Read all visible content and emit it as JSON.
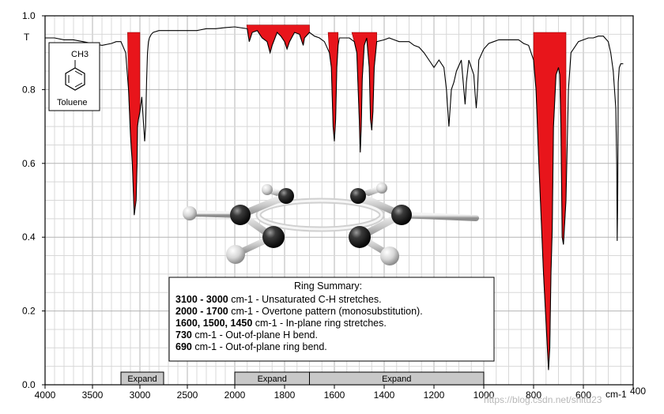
{
  "chart_data": {
    "type": "line",
    "title": "",
    "xlabel": "cm-1",
    "ylabel": "",
    "y_axis_marker": "T",
    "x_direction": "decreasing",
    "xlim": [
      4000,
      400
    ],
    "ylim": [
      0.0,
      1.0
    ],
    "grid": true,
    "x_ticks": [
      4000,
      3500,
      3000,
      2500,
      2000,
      1800,
      1600,
      1400,
      1200,
      1000,
      800,
      600,
      400
    ],
    "x_tick_labels": [
      "4000",
      "3500",
      "3000",
      "2500",
      "2000",
      "1800",
      "1600",
      "1400",
      "1200",
      "1000",
      "800",
      "600",
      "400"
    ],
    "y_ticks": [
      0.0,
      0.2,
      0.4,
      0.6,
      0.8,
      1.0
    ],
    "y_tick_labels": [
      "0.0",
      "0.2",
      "0.4",
      "0.6",
      "0.8",
      "1.0"
    ],
    "series": [
      {
        "color": "#000000",
        "x": [
          4000,
          3900,
          3800,
          3700,
          3600,
          3500,
          3400,
          3300,
          3250,
          3200,
          3150,
          3120,
          3100,
          3080,
          3060,
          3040,
          3030,
          3025,
          3015,
          3000,
          2980,
          2960,
          2950,
          2940,
          2930,
          2920,
          2910,
          2900,
          2880,
          2860,
          2800,
          2700,
          2600,
          2500,
          2400,
          2300,
          2200,
          2100,
          2000,
          1950,
          1942,
          1930,
          1910,
          1890,
          1870,
          1858,
          1850,
          1830,
          1815,
          1800,
          1790,
          1780,
          1760,
          1740,
          1725,
          1720,
          1700,
          1680,
          1660,
          1640,
          1620,
          1612,
          1605,
          1600,
          1595,
          1590,
          1585,
          1580,
          1560,
          1540,
          1520,
          1510,
          1500,
          1496,
          1492,
          1488,
          1480,
          1470,
          1460,
          1455,
          1450,
          1445,
          1440,
          1430,
          1400,
          1380,
          1360,
          1340,
          1320,
          1300,
          1280,
          1260,
          1240,
          1220,
          1200,
          1180,
          1160,
          1150,
          1140,
          1130,
          1120,
          1110,
          1090,
          1080,
          1075,
          1070,
          1060,
          1040,
          1035,
          1030,
          1025,
          1020,
          1000,
          980,
          960,
          940,
          920,
          900,
          880,
          860,
          850,
          840,
          820,
          800,
          790,
          780,
          760,
          740,
          735,
          730,
          725,
          720,
          710,
          700,
          695,
          690,
          685,
          680,
          670,
          660,
          650,
          620,
          600,
          580,
          560,
          540,
          520,
          500,
          490,
          480,
          470,
          466,
          464,
          462,
          460,
          456,
          450,
          440
        ],
        "y": [
          0.94,
          0.94,
          0.935,
          0.935,
          0.93,
          0.925,
          0.92,
          0.925,
          0.93,
          0.93,
          0.9,
          0.8,
          0.68,
          0.6,
          0.46,
          0.5,
          0.6,
          0.7,
          0.72,
          0.74,
          0.78,
          0.7,
          0.66,
          0.7,
          0.82,
          0.9,
          0.93,
          0.94,
          0.95,
          0.955,
          0.96,
          0.96,
          0.96,
          0.96,
          0.96,
          0.965,
          0.965,
          0.968,
          0.97,
          0.965,
          0.93,
          0.955,
          0.96,
          0.94,
          0.93,
          0.9,
          0.92,
          0.955,
          0.945,
          0.93,
          0.91,
          0.93,
          0.955,
          0.95,
          0.92,
          0.94,
          0.955,
          0.945,
          0.94,
          0.93,
          0.9,
          0.86,
          0.7,
          0.66,
          0.72,
          0.86,
          0.92,
          0.94,
          0.94,
          0.94,
          0.93,
          0.9,
          0.72,
          0.63,
          0.7,
          0.83,
          0.92,
          0.94,
          0.86,
          0.72,
          0.69,
          0.74,
          0.86,
          0.93,
          0.935,
          0.94,
          0.935,
          0.93,
          0.93,
          0.93,
          0.92,
          0.915,
          0.9,
          0.88,
          0.86,
          0.88,
          0.86,
          0.8,
          0.7,
          0.8,
          0.82,
          0.85,
          0.88,
          0.8,
          0.76,
          0.82,
          0.88,
          0.84,
          0.79,
          0.75,
          0.8,
          0.88,
          0.91,
          0.925,
          0.93,
          0.935,
          0.935,
          0.935,
          0.935,
          0.935,
          0.93,
          0.925,
          0.92,
          0.88,
          0.8,
          0.62,
          0.3,
          0.04,
          0.1,
          0.3,
          0.42,
          0.7,
          0.84,
          0.86,
          0.84,
          0.7,
          0.4,
          0.38,
          0.5,
          0.8,
          0.9,
          0.93,
          0.935,
          0.94,
          0.94,
          0.945,
          0.945,
          0.93,
          0.9,
          0.85,
          0.75,
          0.6,
          0.39,
          0.52,
          0.82,
          0.86,
          0.87,
          0.87
        ]
      }
    ],
    "highlighted_bands_color": "#e8151b",
    "expand_bars": [
      {
        "label": "Expand",
        "from": 3200,
        "to": 2750
      },
      {
        "label": "Expand",
        "from": 2000,
        "to": 1700
      },
      {
        "label": "Expand",
        "from": 1700,
        "to": 1000
      }
    ],
    "annotations": {
      "summary_title": "Ring Summary:",
      "summary_lines": [
        {
          "bold": "3100 - 3000",
          "unit": " cm-1",
          "text": " - Unsaturated C-H stretches."
        },
        {
          "bold": "2000 - 1700",
          "unit": " cm-1",
          "text": " - Overtone pattern (monosubstitution)."
        },
        {
          "bold": "1600, 1500, 1450",
          "unit": " cm-1",
          "text": " - In-plane ring stretches."
        },
        {
          "bold": "730",
          "unit": " cm-1",
          "text": " - Out-of-plane H bend."
        },
        {
          "bold": "690",
          "unit": " cm-1",
          "text": " - Out-of-plane ring bend."
        }
      ],
      "inset_label": "Toluene",
      "inset_group": "CH3"
    }
  },
  "watermark": "https://blog.csdn.net/shitu23"
}
